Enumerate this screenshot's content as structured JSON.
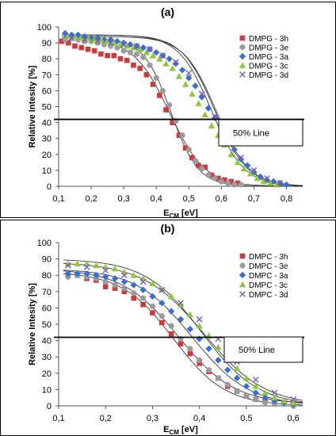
{
  "chart_data": [
    {
      "type": "scatter",
      "panel_label": "(a)",
      "xlabel": "E",
      "xlabel_sub": "CM",
      "xlabel_unit": " [eV]",
      "ylabel": "Relative Intesity [%]",
      "xlim": [
        0.1,
        0.85
      ],
      "ylim": [
        0,
        100
      ],
      "xticks": [
        "0,1",
        "0,2",
        "0,3",
        "0,4",
        "0,5",
        "0,6",
        "0,7",
        "0,8"
      ],
      "yticks": [
        "0",
        "10",
        "20",
        "30",
        "40",
        "50",
        "60",
        "70",
        "80",
        "90",
        "100"
      ],
      "reference_line": {
        "y": 42,
        "label": "50% Line"
      },
      "grid": false,
      "legend_position": "right",
      "series": [
        {
          "name": "DMPG - 3h",
          "marker": "square",
          "color": "#cc3b3b",
          "curve": [
            0.44,
            0.055,
            93,
            0
          ],
          "x": [
            0.11,
            0.13,
            0.15,
            0.17,
            0.19,
            0.21,
            0.23,
            0.25,
            0.27,
            0.29,
            0.31,
            0.33,
            0.35,
            0.37,
            0.39,
            0.41,
            0.43,
            0.45,
            0.47,
            0.49,
            0.51,
            0.53,
            0.55,
            0.57,
            0.59,
            0.61,
            0.63,
            0.65
          ],
          "y": [
            91,
            90,
            88,
            87,
            86,
            85,
            83,
            82,
            82,
            80,
            79,
            76,
            74,
            70,
            64,
            57,
            48,
            40,
            32,
            24,
            18,
            13,
            12,
            7,
            5,
            4,
            3,
            2
          ]
        },
        {
          "name": "DMPG - 3e",
          "marker": "circle",
          "color": "#9b9b9b",
          "curve": [
            0.445,
            0.042,
            93,
            0
          ],
          "x": [
            0.12,
            0.14,
            0.16,
            0.18,
            0.2,
            0.22,
            0.24,
            0.26,
            0.28,
            0.3,
            0.32,
            0.34,
            0.36,
            0.38,
            0.4,
            0.42,
            0.44,
            0.46,
            0.48,
            0.5,
            0.52,
            0.54,
            0.56,
            0.58,
            0.6,
            0.62,
            0.64,
            0.66
          ],
          "y": [
            92,
            93,
            92,
            91,
            91,
            90,
            89,
            88,
            87,
            85,
            84,
            83,
            81,
            76,
            68,
            60,
            51,
            41,
            32,
            23,
            16,
            11,
            7,
            5,
            3,
            2,
            1,
            1
          ]
        },
        {
          "name": "DMPG - 3a",
          "marker": "diamond",
          "color": "#3b6fcf",
          "curve": [
            0.58,
            0.05,
            95,
            0
          ],
          "x": [
            0.12,
            0.14,
            0.16,
            0.18,
            0.2,
            0.22,
            0.24,
            0.26,
            0.28,
            0.3,
            0.32,
            0.34,
            0.36,
            0.38,
            0.4,
            0.42,
            0.44,
            0.46,
            0.48,
            0.5,
            0.52,
            0.54,
            0.56,
            0.58,
            0.6,
            0.62,
            0.64,
            0.66,
            0.68,
            0.7,
            0.72,
            0.74,
            0.76,
            0.78,
            0.8
          ],
          "y": [
            96,
            95,
            95,
            94,
            93,
            93,
            92,
            92,
            91,
            90,
            89,
            88,
            87,
            86,
            84,
            82,
            80,
            77,
            73,
            68,
            63,
            56,
            49,
            43,
            36,
            29,
            23,
            17,
            13,
            9,
            6,
            4,
            3,
            2,
            1
          ]
        },
        {
          "name": "DMPG - 3c",
          "marker": "triangle",
          "color": "#8dc63f",
          "curve": [
            0.57,
            0.05,
            95,
            0
          ],
          "x": [
            0.13,
            0.15,
            0.17,
            0.19,
            0.21,
            0.23,
            0.25,
            0.27,
            0.29,
            0.31,
            0.33,
            0.35,
            0.37,
            0.39,
            0.41,
            0.43,
            0.45,
            0.47,
            0.49,
            0.51,
            0.53,
            0.55,
            0.57,
            0.59,
            0.61,
            0.63,
            0.65,
            0.67,
            0.69,
            0.71,
            0.73,
            0.75,
            0.77
          ],
          "y": [
            94,
            94,
            93,
            93,
            92,
            92,
            91,
            90,
            89,
            88,
            87,
            86,
            84,
            82,
            80,
            77,
            74,
            69,
            64,
            58,
            52,
            45,
            38,
            32,
            26,
            20,
            15,
            11,
            8,
            5,
            3,
            2,
            1
          ]
        },
        {
          "name": "DMPG - 3d",
          "marker": "x",
          "color": "#7a5ab6",
          "curve": [
            0.585,
            0.05,
            94,
            0
          ],
          "x": [
            0.14,
            0.18,
            0.22,
            0.26,
            0.3,
            0.34,
            0.38,
            0.42,
            0.46,
            0.5,
            0.54,
            0.58,
            0.62,
            0.66,
            0.7,
            0.74,
            0.78
          ],
          "y": [
            93,
            92,
            91,
            90,
            89,
            88,
            86,
            82,
            78,
            71,
            58,
            44,
            30,
            18,
            10,
            5,
            2
          ]
        }
      ]
    },
    {
      "type": "scatter",
      "panel_label": "(b)",
      "xlabel": "E",
      "xlabel_sub": "CM",
      "xlabel_unit": " [eV]",
      "ylabel": "Relative Intesity [%]",
      "xlim": [
        0.1,
        0.62
      ],
      "ylim": [
        0,
        100
      ],
      "xticks": [
        "0,1",
        "0,2",
        "0,3",
        "0,4",
        "0,5",
        "0,6"
      ],
      "yticks": [
        "0",
        "10",
        "20",
        "30",
        "40",
        "50",
        "60",
        "70",
        "80",
        "90",
        "100"
      ],
      "reference_line": {
        "y": 42,
        "label": "50% Line"
      },
      "grid": false,
      "legend_position": "right",
      "series": [
        {
          "name": "DMPC - 3h",
          "marker": "square",
          "color": "#cc3b3b",
          "curve": [
            0.355,
            0.06,
            84,
            1
          ],
          "x": [
            0.12,
            0.14,
            0.16,
            0.18,
            0.2,
            0.22,
            0.24,
            0.26,
            0.28,
            0.3,
            0.32,
            0.34,
            0.36,
            0.38,
            0.4,
            0.42,
            0.44,
            0.46,
            0.48,
            0.5,
            0.52,
            0.54,
            0.56,
            0.58,
            0.6
          ],
          "y": [
            80,
            80,
            78,
            77,
            73,
            72,
            70,
            66,
            62,
            57,
            51,
            44,
            38,
            32,
            26,
            21,
            17,
            12,
            9,
            6,
            4,
            3,
            3,
            2,
            2
          ]
        },
        {
          "name": "DMPC - 3e",
          "marker": "circle",
          "color": "#9b9b9b",
          "curve": [
            0.345,
            0.055,
            82,
            0
          ],
          "x": [
            0.12,
            0.14,
            0.16,
            0.18,
            0.2,
            0.22,
            0.24,
            0.26,
            0.28,
            0.3,
            0.32,
            0.34,
            0.36,
            0.38,
            0.4,
            0.42,
            0.44,
            0.46,
            0.48,
            0.5,
            0.52,
            0.54,
            0.56,
            0.58,
            0.6
          ],
          "y": [
            79,
            80,
            79,
            78,
            76,
            74,
            72,
            69,
            66,
            61,
            55,
            49,
            41,
            35,
            28,
            22,
            17,
            13,
            9,
            6,
            4,
            2,
            1,
            1,
            0
          ]
        },
        {
          "name": "DMPC - 3a",
          "marker": "diamond",
          "color": "#3b6fcf",
          "curve": [
            0.385,
            0.06,
            84,
            0
          ],
          "x": [
            0.12,
            0.14,
            0.16,
            0.18,
            0.2,
            0.22,
            0.24,
            0.26,
            0.28,
            0.3,
            0.32,
            0.34,
            0.36,
            0.38,
            0.4,
            0.42,
            0.44,
            0.46,
            0.48,
            0.5,
            0.52,
            0.54,
            0.56,
            0.58,
            0.6
          ],
          "y": [
            81,
            81,
            81,
            80,
            79,
            78,
            76,
            74,
            71,
            67,
            63,
            58,
            53,
            47,
            41,
            35,
            28,
            22,
            17,
            12,
            8,
            5,
            3,
            2,
            1
          ]
        },
        {
          "name": "DMPC - 3c",
          "marker": "triangle",
          "color": "#8dc63f",
          "curve": [
            0.405,
            0.06,
            90,
            0
          ],
          "x": [
            0.12,
            0.14,
            0.16,
            0.18,
            0.2,
            0.22,
            0.24,
            0.26,
            0.28,
            0.3,
            0.32,
            0.34,
            0.36,
            0.38,
            0.4,
            0.42,
            0.44,
            0.46,
            0.48,
            0.5,
            0.52,
            0.54,
            0.56,
            0.58,
            0.6
          ],
          "y": [
            87,
            87,
            87,
            86,
            85,
            84,
            82,
            80,
            78,
            75,
            71,
            67,
            62,
            56,
            49,
            43,
            36,
            29,
            23,
            17,
            12,
            8,
            5,
            3,
            2
          ]
        },
        {
          "name": "DMPC - 3d",
          "marker": "x",
          "color": "#7a5ab6",
          "curve": [
            0.41,
            0.065,
            88,
            0
          ],
          "x": [
            0.12,
            0.16,
            0.2,
            0.24,
            0.28,
            0.32,
            0.36,
            0.4,
            0.44,
            0.48,
            0.52,
            0.56,
            0.6
          ],
          "y": [
            86,
            85,
            83,
            80,
            76,
            71,
            63,
            53,
            41,
            27,
            16,
            8,
            4
          ]
        }
      ]
    }
  ]
}
